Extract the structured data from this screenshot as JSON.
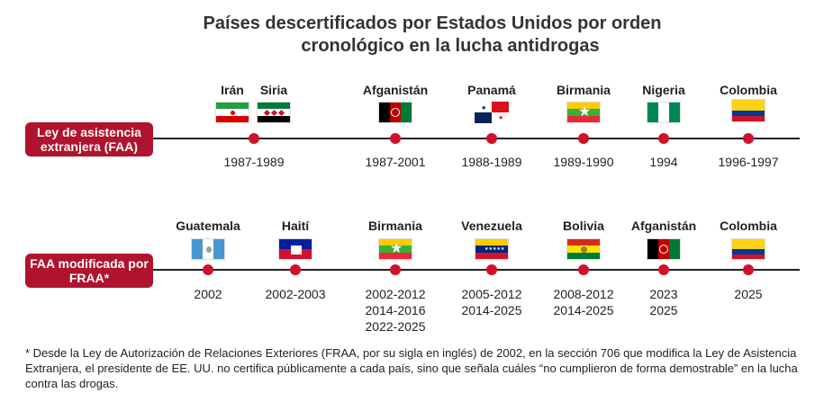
{
  "title_line1": "Países descertificados por Estados Unidos por orden",
  "title_line2": "cronológico en la lucha antidrogas",
  "rows": [
    {
      "label": "Ley de asistencia extranjera (FAA)",
      "items": [
        {
          "country": "Irán",
          "flag": "iran-flag",
          "years": []
        },
        {
          "country": "Siria",
          "flag": "syria-flag",
          "years": []
        },
        {
          "country": "Afganistán",
          "flag": "afghanistan-flag",
          "years": [
            "1987-2001"
          ]
        },
        {
          "country": "Panamá",
          "flag": "panama-flag",
          "years": [
            "1988-1989"
          ]
        },
        {
          "country": "Birmania",
          "flag": "myanmar-flag",
          "years": [
            "1989-1990"
          ]
        },
        {
          "country": "Nigeria",
          "flag": "nigeria-flag",
          "years": [
            "1994"
          ]
        },
        {
          "country": "Colombia",
          "flag": "colombia-flag",
          "years": [
            "1996-1997"
          ]
        }
      ],
      "shared_years": "1987-1989"
    },
    {
      "label": "FAA modificada por FRAA*",
      "items": [
        {
          "country": "Guatemala",
          "flag": "guatemala-flag",
          "years": [
            "2002"
          ]
        },
        {
          "country": "Haití",
          "flag": "haiti-flag",
          "years": [
            "2002-2003"
          ]
        },
        {
          "country": "Birmania",
          "flag": "myanmar-flag",
          "years": [
            "2002-2012",
            "2014-2016",
            "2022-2025"
          ]
        },
        {
          "country": "Venezuela",
          "flag": "venezuela-flag",
          "years": [
            "2005-2012",
            "2014-2025"
          ]
        },
        {
          "country": "Bolivia",
          "flag": "bolivia-flag",
          "years": [
            "2008-2012",
            "2014-2025"
          ]
        },
        {
          "country": "Afganistán",
          "flag": "afghanistan-flag",
          "years": [
            "2023",
            "2025"
          ]
        },
        {
          "country": "Colombia",
          "flag": "colombia-flag",
          "years": [
            "2025"
          ]
        }
      ]
    }
  ],
  "footnote": "* Desde la Ley de Autorización de Relaciones Exteriores (FRAA, por su sigla en inglés) de 2002, en la sección 706 que modifica la Ley de Asistencia Extranjera, el presidente de EE. UU. no certifica públicamente a cada país, sino que señala cuáles “no cumplieron de forma demostrable” en la lucha contra las drogas.",
  "colors": {
    "accent": "#b0132d",
    "dot": "#d0112b"
  }
}
